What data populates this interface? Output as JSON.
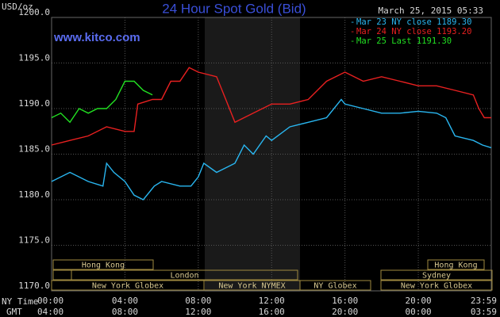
{
  "chart_data": {
    "type": "line",
    "title": "24 Hour Spot Gold (Bid)",
    "timestamp": "March 25, 2015 05:33",
    "website": "www.kitco.com",
    "y_label": "USD/oz",
    "x_label": "NY Time",
    "x2_label": "GMT",
    "xlim": [
      0,
      23.98
    ],
    "ylim": [
      1170,
      1200
    ],
    "xticks": [
      {
        "value": 0,
        "label": "00:00"
      },
      {
        "value": 4,
        "label": "04:00"
      },
      {
        "value": 8,
        "label": "08:00"
      },
      {
        "value": 12,
        "label": "12:00"
      },
      {
        "value": 16,
        "label": "16:00"
      },
      {
        "value": 20,
        "label": "20:00"
      },
      {
        "value": 23.98,
        "label": "23:59"
      }
    ],
    "x2tick_labels": [
      "04:00",
      "08:00",
      "12:00",
      "16:00",
      "20:00",
      "00:00",
      "03:59"
    ],
    "yticks": [
      {
        "value": 1170,
        "label": "1170.0"
      },
      {
        "value": 1175,
        "label": "1175.0"
      },
      {
        "value": 1180,
        "label": "1180.0"
      },
      {
        "value": 1185,
        "label": "1185.0"
      },
      {
        "value": 1190,
        "label": "1190.0"
      },
      {
        "value": 1195,
        "label": "1195.0"
      },
      {
        "value": 1200,
        "label": "1200.0"
      }
    ],
    "grid": true,
    "series": [
      {
        "name": "Mar 23 NY close 1189.30",
        "color": "#29b6f0",
        "x": [
          0,
          1,
          2,
          2.8,
          3,
          3.4,
          4,
          4.5,
          5,
          5.6,
          6,
          7,
          7.6,
          8,
          8.3,
          9,
          9.5,
          10,
          10.5,
          11,
          11.7,
          12,
          13,
          14,
          15,
          15.8,
          16,
          17,
          18,
          19,
          20,
          21,
          21.5,
          22,
          23,
          23.5,
          23.98
        ],
        "values": [
          1182,
          1183,
          1182,
          1181.5,
          1184,
          1183,
          1182,
          1180.5,
          1180,
          1181.5,
          1182,
          1181.5,
          1181.5,
          1182.5,
          1184,
          1183,
          1183.5,
          1184,
          1186,
          1185,
          1187,
          1186.5,
          1188,
          1188.5,
          1189,
          1191,
          1190.5,
          1190,
          1189.5,
          1189.5,
          1189.7,
          1189.5,
          1189,
          1187,
          1186.5,
          1186,
          1185.7
        ]
      },
      {
        "name": "Mar 24 NY close 1193.20",
        "color": "#e82020",
        "x": [
          0,
          1,
          2,
          3,
          4,
          4.5,
          4.7,
          5.5,
          6,
          6.5,
          7,
          7.5,
          8,
          9,
          9.5,
          10,
          11,
          12,
          13,
          14,
          15,
          16,
          17,
          18,
          19,
          20,
          21,
          22,
          23,
          23.3,
          23.6,
          23.98
        ],
        "values": [
          1186,
          1186.5,
          1187,
          1188,
          1187.5,
          1187.5,
          1190.5,
          1191,
          1191,
          1193,
          1193,
          1194.5,
          1194,
          1193.5,
          1191,
          1188.5,
          1189.5,
          1190.5,
          1190.5,
          1191,
          1193,
          1194,
          1193,
          1193.5,
          1193,
          1192.5,
          1192.5,
          1192,
          1191.5,
          1190,
          1189,
          1189
        ]
      },
      {
        "name": "Mar 25 Last 1191.30",
        "color": "#22e022",
        "x": [
          0,
          0.5,
          1,
          1.5,
          2,
          2.5,
          3,
          3.5,
          4,
          4.5,
          5,
          5.5
        ],
        "values": [
          1189,
          1189.5,
          1188.5,
          1190,
          1189.5,
          1190,
          1190,
          1191,
          1193,
          1193,
          1192,
          1191.5
        ]
      }
    ],
    "sessions": [
      "Hong Kong",
      "Hong Kong",
      "London",
      "Sydney",
      "New York Globex",
      "New York NYMEX",
      "NY Globex",
      "New York Globex"
    ]
  }
}
